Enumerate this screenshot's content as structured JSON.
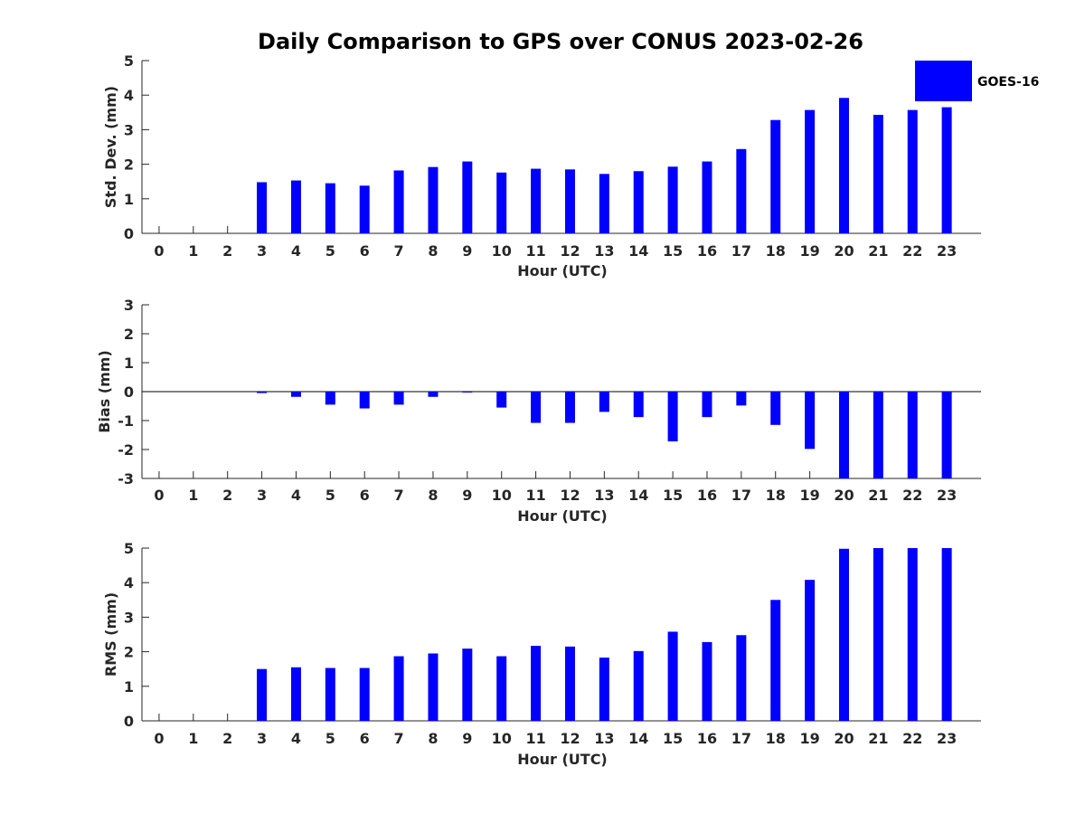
{
  "figure": {
    "title": "Daily Comparison to GPS over CONUS 2023-02-26",
    "legend": {
      "label": "GOES-16",
      "placement": "top-right"
    },
    "colors": {
      "bar": "#0000ff",
      "axis": "#262626",
      "background": "#ffffff"
    }
  },
  "chart_data": [
    {
      "type": "bar",
      "title": "Daily Comparison to GPS over CONUS 2023-02-26",
      "xlabel": "Hour (UTC)",
      "ylabel": "Std. Dev. (mm)",
      "ylim": [
        0,
        5
      ],
      "yticks": [
        0,
        1,
        2,
        3,
        4,
        5
      ],
      "categories": [
        "0",
        "1",
        "2",
        "3",
        "4",
        "5",
        "6",
        "7",
        "8",
        "9",
        "10",
        "11",
        "12",
        "13",
        "14",
        "15",
        "16",
        "17",
        "18",
        "19",
        "20",
        "21",
        "22",
        "23"
      ],
      "series": [
        {
          "name": "GOES-16",
          "values": [
            null,
            null,
            null,
            1.48,
            1.53,
            1.45,
            1.38,
            1.82,
            1.92,
            2.08,
            1.76,
            1.87,
            1.85,
            1.72,
            1.8,
            1.93,
            2.08,
            2.44,
            3.28,
            3.57,
            3.92,
            3.43,
            3.57,
            3.65
          ]
        }
      ],
      "grid": false,
      "legend": "top-right"
    },
    {
      "type": "bar",
      "xlabel": "Hour (UTC)",
      "ylabel": "Bias (mm)",
      "ylim": [
        -3,
        3
      ],
      "yticks": [
        -3,
        -2,
        -1,
        0,
        1,
        2,
        3
      ],
      "categories": [
        "0",
        "1",
        "2",
        "3",
        "4",
        "5",
        "6",
        "7",
        "8",
        "9",
        "10",
        "11",
        "12",
        "13",
        "14",
        "15",
        "16",
        "17",
        "18",
        "19",
        "20",
        "21",
        "22",
        "23"
      ],
      "series": [
        {
          "name": "GOES-16",
          "values": [
            null,
            null,
            null,
            -0.05,
            -0.18,
            -0.45,
            -0.58,
            -0.45,
            -0.18,
            -0.02,
            -0.55,
            -1.08,
            -1.08,
            -0.7,
            -0.88,
            -1.72,
            -0.88,
            -0.48,
            -1.15,
            -1.98,
            -3.0,
            -3.0,
            -3.0,
            -3.0
          ]
        }
      ],
      "grid": false
    },
    {
      "type": "bar",
      "xlabel": "Hour (UTC)",
      "ylabel": "RMS (mm)",
      "ylim": [
        0,
        5
      ],
      "yticks": [
        0,
        1,
        2,
        3,
        4,
        5
      ],
      "categories": [
        "0",
        "1",
        "2",
        "3",
        "4",
        "5",
        "6",
        "7",
        "8",
        "9",
        "10",
        "11",
        "12",
        "13",
        "14",
        "15",
        "16",
        "17",
        "18",
        "19",
        "20",
        "21",
        "22",
        "23"
      ],
      "series": [
        {
          "name": "GOES-16",
          "values": [
            null,
            null,
            null,
            1.5,
            1.55,
            1.53,
            1.53,
            1.87,
            1.95,
            2.09,
            1.87,
            2.17,
            2.15,
            1.83,
            2.02,
            2.58,
            2.28,
            2.48,
            3.5,
            4.08,
            4.98,
            5.0,
            5.0,
            5.0
          ]
        }
      ],
      "grid": false
    }
  ]
}
